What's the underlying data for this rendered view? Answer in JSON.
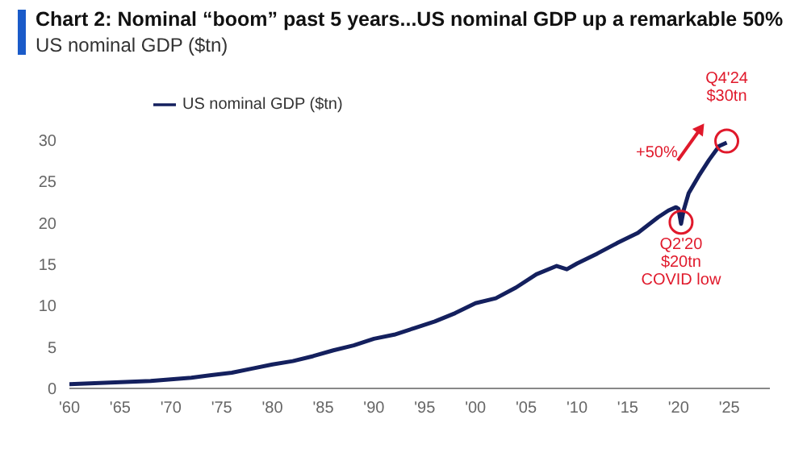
{
  "chart_data": {
    "type": "line",
    "title": "Chart 2: Nominal “boom” past 5 years...US nominal GDP up a remarkable 50%",
    "subtitle": "US nominal GDP ($tn)",
    "x": [
      1960,
      1962,
      1964,
      1966,
      1968,
      1970,
      1972,
      1974,
      1976,
      1978,
      1980,
      1982,
      1984,
      1986,
      1988,
      1990,
      1992,
      1994,
      1996,
      1998,
      2000,
      2002,
      2004,
      2006,
      2008,
      2009,
      2010,
      2012,
      2014,
      2016,
      2018,
      2019,
      2019.75,
      2020,
      2020.25,
      2020.5,
      2021,
      2022,
      2023,
      2024,
      2024.75
    ],
    "series": [
      {
        "name": "US nominal GDP ($tn)",
        "color": "#14205e",
        "values": [
          0.5,
          0.6,
          0.7,
          0.8,
          0.9,
          1.1,
          1.3,
          1.6,
          1.9,
          2.4,
          2.9,
          3.3,
          3.9,
          4.6,
          5.2,
          6,
          6.5,
          7.3,
          8.1,
          9.1,
          10.3,
          10.9,
          12.2,
          13.8,
          14.8,
          14.4,
          15.1,
          16.3,
          17.6,
          18.8,
          20.7,
          21.5,
          21.9,
          21.7,
          19.9,
          21.5,
          23.6,
          25.7,
          27.6,
          29.3,
          29.7
        ]
      }
    ],
    "xlim": [
      1960,
      2029
    ],
    "xticks": [
      {
        "value": 1960,
        "label": "'60"
      },
      {
        "value": 1965,
        "label": "'65"
      },
      {
        "value": 1970,
        "label": "'70"
      },
      {
        "value": 1975,
        "label": "'75"
      },
      {
        "value": 1980,
        "label": "'80"
      },
      {
        "value": 1985,
        "label": "'85"
      },
      {
        "value": 1990,
        "label": "'90"
      },
      {
        "value": 1995,
        "label": "'95"
      },
      {
        "value": 2000,
        "label": "'00"
      },
      {
        "value": 2005,
        "label": "'05"
      },
      {
        "value": 2010,
        "label": "'10"
      },
      {
        "value": 2015,
        "label": "'15"
      },
      {
        "value": 2020,
        "label": "'20"
      },
      {
        "value": 2025,
        "label": "'25"
      }
    ],
    "ylim": [
      0,
      30
    ],
    "yticks": [
      0,
      5,
      10,
      15,
      20,
      25,
      30
    ],
    "grid": false,
    "legend": "top left",
    "marker": "none",
    "line_style": "solid",
    "annotations": [
      {
        "text": "Q4'24\n$30tn",
        "x": 2024.75,
        "y": 29.7
      },
      {
        "text": "Q2'20\n$20tn\nCOVID low",
        "x": 2020.25,
        "y": 19.9
      },
      "+50%"
    ]
  }
}
